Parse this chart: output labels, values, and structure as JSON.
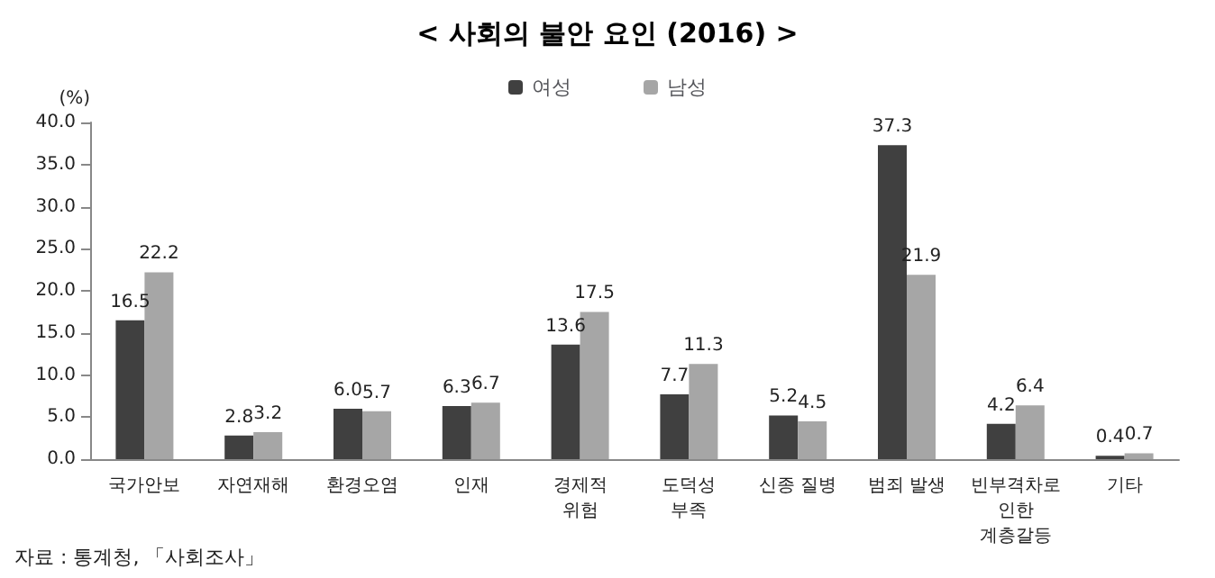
{
  "chart_data": {
    "type": "bar",
    "title": "< 사회의 불안 요인 (2016) >",
    "ylabel": "(%)",
    "categories": [
      "국가안보",
      "자연재해",
      "환경오염",
      "인재",
      "경제적\n위험",
      "도덕성\n부족",
      "신종 질병",
      "범죄 발생",
      "빈부격차로\n인한\n계층갈등",
      "기타"
    ],
    "series": [
      {
        "name": "여성",
        "color": "#404040",
        "values": [
          16.5,
          2.8,
          6.0,
          6.3,
          13.6,
          7.7,
          5.2,
          37.3,
          4.2,
          0.4
        ],
        "value_labels": [
          "16.5",
          "2.8",
          "6.0",
          "6.3",
          "13.6",
          "7.7",
          "5.2",
          "37.3",
          "4.2",
          "0.4"
        ]
      },
      {
        "name": "남성",
        "color": "#a6a6a6",
        "values": [
          22.2,
          3.2,
          5.7,
          6.7,
          17.5,
          11.3,
          4.5,
          21.9,
          6.4,
          0.7
        ],
        "value_labels": [
          "22.2",
          "3.2",
          "5.7",
          "6.7",
          "17.5",
          "11.3",
          "4.5",
          "21.9",
          "6.4",
          "0.7"
        ]
      }
    ],
    "ylim": [
      0,
      40
    ],
    "yticks": [
      {
        "value": 0,
        "label": "0.0"
      },
      {
        "value": 5,
        "label": "5.0"
      },
      {
        "value": 10,
        "label": "10.0"
      },
      {
        "value": 15,
        "label": "15.0"
      },
      {
        "value": 20,
        "label": "20.0"
      },
      {
        "value": 25,
        "label": "25.0"
      },
      {
        "value": 30,
        "label": "30.0"
      },
      {
        "value": 35,
        "label": "35.0"
      },
      {
        "value": 40,
        "label": "40.0"
      }
    ],
    "grid": false,
    "legend": "top",
    "annotations": [
      "자료 : 통계청, 「사회조사」"
    ]
  }
}
